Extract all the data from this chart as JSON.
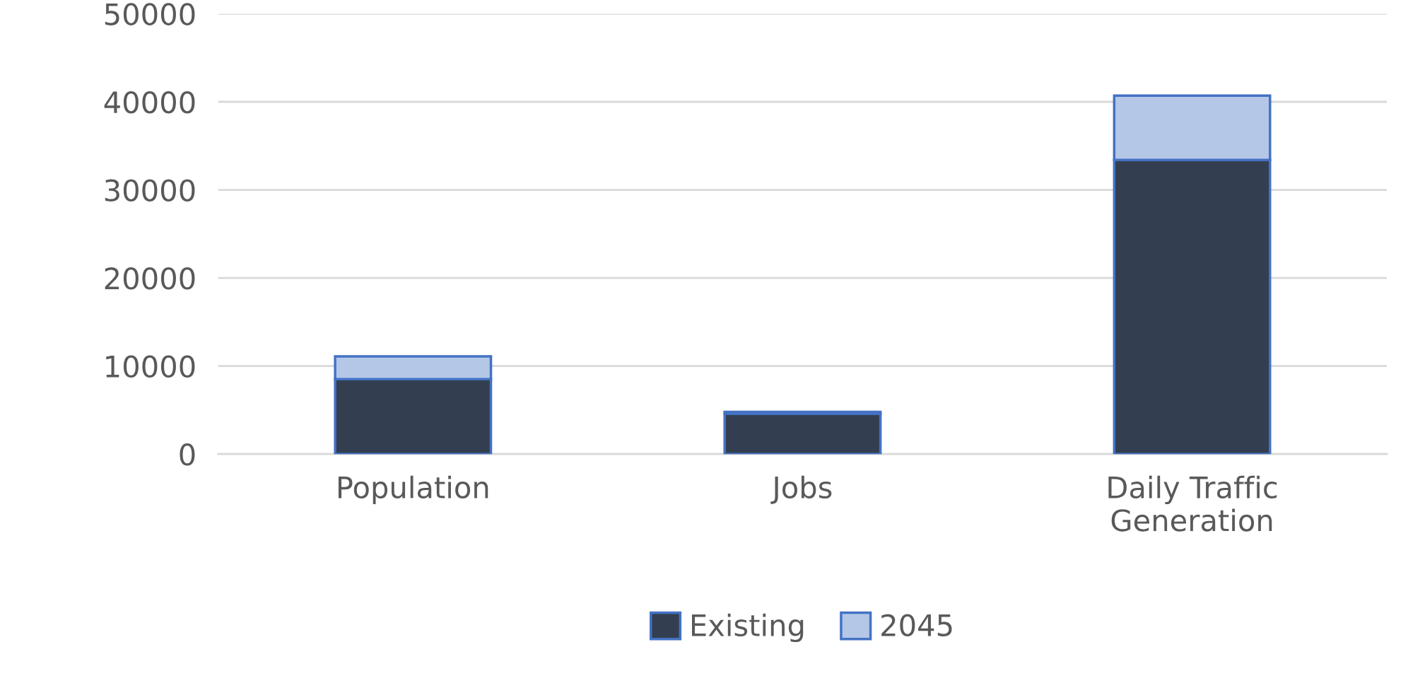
{
  "chart_data": {
    "type": "bar",
    "stacked": true,
    "categories": [
      "Population",
      "Jobs",
      "Daily Traffic\nGeneration"
    ],
    "series": [
      {
        "name": "Existing",
        "color": "#333f50",
        "values": [
          8500,
          4600,
          33400
        ]
      },
      {
        "name": "2045",
        "color": "#b4c7e7",
        "values": [
          2600,
          200,
          7300
        ]
      }
    ],
    "ylim": [
      0,
      50000
    ],
    "yticks": [
      0,
      10000,
      20000,
      30000,
      40000,
      50000
    ],
    "grid": "y",
    "legend": "bottom"
  }
}
